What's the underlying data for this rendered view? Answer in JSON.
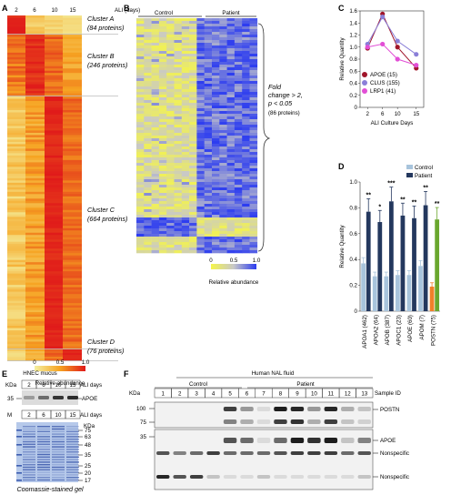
{
  "panel_a": {
    "letter": "A",
    "ali_label": "ALI (days)",
    "days": [
      "2",
      "6",
      "10",
      "15"
    ],
    "clusters": [
      {
        "name": "Cluster A",
        "count": "(84 proteins)"
      },
      {
        "name": "Cluster B",
        "count": "(246 proteins)"
      },
      {
        "name": "Cluster C",
        "count": "(664 proteins)"
      },
      {
        "name": "Cluster D",
        "count": "(76 proteins)"
      }
    ],
    "scale_ticks": [
      "0",
      "0.5",
      "1.0"
    ],
    "scale_label": "Relative abundance"
  },
  "panel_b": {
    "letter": "B",
    "groups": [
      "Control",
      "Patient"
    ],
    "note": [
      "Fold",
      "change > 2,",
      "p < 0.05",
      "(86 proteins)"
    ],
    "scale_ticks": [
      "0",
      "0.5",
      "1.0"
    ],
    "scale_label": "Relative abundance"
  },
  "panel_e": {
    "letter": "E",
    "title": "HNEC mucus",
    "kda": "KDa",
    "ali_days": "ALI days",
    "days": [
      "2",
      "6",
      "10",
      "15"
    ],
    "blot_marker": "35",
    "protein": "APOE",
    "m_label": "M",
    "kda2": "KDa",
    "ladder": [
      "75",
      "63",
      "48",
      "35",
      "25",
      "20",
      "17"
    ],
    "caption": "Coomassie-stained gel"
  },
  "panel_f": {
    "letter": "F",
    "title": "Human NAL fluid",
    "kda": "KDa",
    "control_label": "Control",
    "patient_label": "Patient",
    "sample_ids": [
      "1",
      "2",
      "3",
      "4",
      "5",
      "6",
      "7",
      "8",
      "9",
      "10",
      "11",
      "12",
      "13"
    ],
    "sample_id_label": "Sample ID",
    "markers_top": [
      "100",
      "75"
    ],
    "marker_bottom": "35",
    "bands": [
      "POSTN",
      "APOE",
      "Nonspecific",
      "Nonspecific"
    ]
  },
  "chart_data": [
    {
      "panel": "C",
      "type": "line",
      "x": [
        2,
        6,
        10,
        15
      ],
      "xlabel": "ALI Culture Days",
      "ylabel": "Relative Quantity",
      "xticks": [
        "2",
        "6",
        "10",
        "15"
      ],
      "yticks": [
        "0",
        "0.2",
        "0.4",
        "0.6",
        "0.8",
        "1.0",
        "1.2",
        "1.4",
        "1.6"
      ],
      "ylim": [
        0,
        1.6
      ],
      "legend": "bottom-left",
      "colors": {
        "APOE": "#a0152a",
        "CLUS": "#8a7fd8",
        "LRP1": "#e24fd6"
      },
      "series": [
        {
          "name": "APOE (15)",
          "values": [
            0.98,
            1.55,
            1.0,
            0.65
          ]
        },
        {
          "name": "CLUS (155)",
          "values": [
            1.05,
            1.5,
            1.1,
            0.88
          ]
        },
        {
          "name": "LRP1 (41)",
          "values": [
            1.0,
            1.05,
            0.8,
            0.7
          ]
        }
      ]
    },
    {
      "panel": "D",
      "type": "bar",
      "categories": [
        "APOA1 (462)",
        "APOA2 (64)",
        "APOB (387)",
        "APOC1 (23)",
        "APOE (60)",
        "APOM (7)",
        "POSTN (75)"
      ],
      "ylabel": "Relative Quantity",
      "yticks": [
        "0",
        "0.2",
        "0.4",
        "0.6",
        "0.8",
        "1.0"
      ],
      "ylim": [
        0,
        1.0
      ],
      "legend": "top-right",
      "colors": {
        "Control": "#a8c4dc",
        "Patient": "#24385e",
        "POSTN control": "#f0802a",
        "POSTN patient": "#6aa72e"
      },
      "significance": [
        "**",
        "*",
        "***",
        "**",
        "**",
        "**",
        "**"
      ],
      "series": [
        {
          "name": "Control",
          "values": [
            0.37,
            0.27,
            0.27,
            0.28,
            0.28,
            0.35,
            0.19
          ]
        },
        {
          "name": "Patient",
          "values": [
            0.77,
            0.69,
            0.85,
            0.74,
            0.72,
            0.82,
            0.71
          ]
        }
      ]
    }
  ]
}
